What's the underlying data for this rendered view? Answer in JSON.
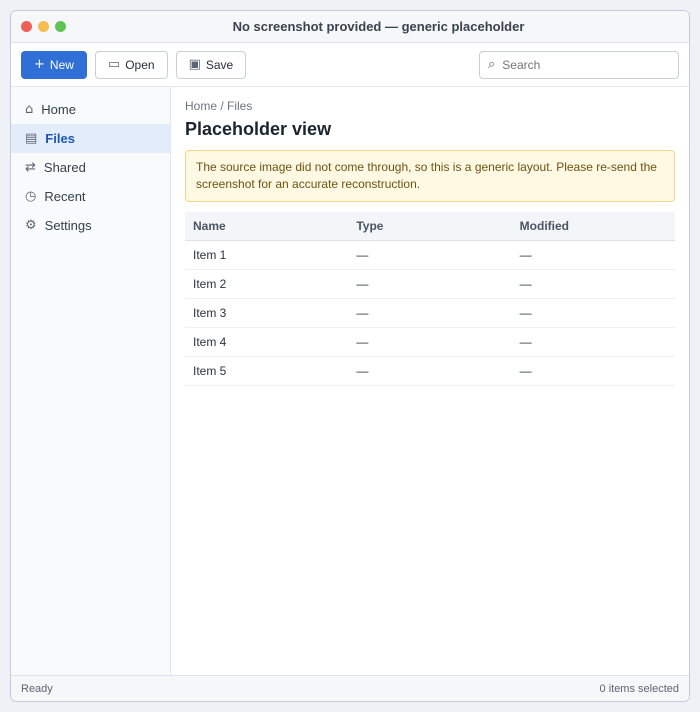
{
  "window": {
    "title": "No screenshot provided — generic placeholder"
  },
  "toolbar": {
    "new_label": "New",
    "open_label": "Open",
    "save_label": "Save",
    "search_placeholder": "Search"
  },
  "icons": {
    "new": "plus-icon",
    "open": "folder-icon",
    "save": "save-icon",
    "search": "search-icon"
  },
  "sidebar": {
    "items": [
      {
        "label": "Home",
        "icon": "⌂"
      },
      {
        "label": "Files",
        "icon": "▤"
      },
      {
        "label": "Shared",
        "icon": "⇄"
      },
      {
        "label": "Recent",
        "icon": "◷"
      },
      {
        "label": "Settings",
        "icon": "⚙"
      }
    ]
  },
  "main": {
    "breadcrumb": "Home / Files",
    "title": "Placeholder view",
    "notice": "The source image did not come through, so this is a generic layout. Please re-send the screenshot for an accurate reconstruction.",
    "table": {
      "headers": [
        "Name",
        "Type",
        "Modified"
      ],
      "rows": [
        [
          "Item 1",
          "—",
          "—"
        ],
        [
          "Item 2",
          "—",
          "—"
        ],
        [
          "Item 3",
          "—",
          "—"
        ],
        [
          "Item 4",
          "—",
          "—"
        ],
        [
          "Item 5",
          "—",
          "—"
        ]
      ]
    }
  },
  "status": {
    "left": "Ready",
    "right": "0 items selected"
  }
}
